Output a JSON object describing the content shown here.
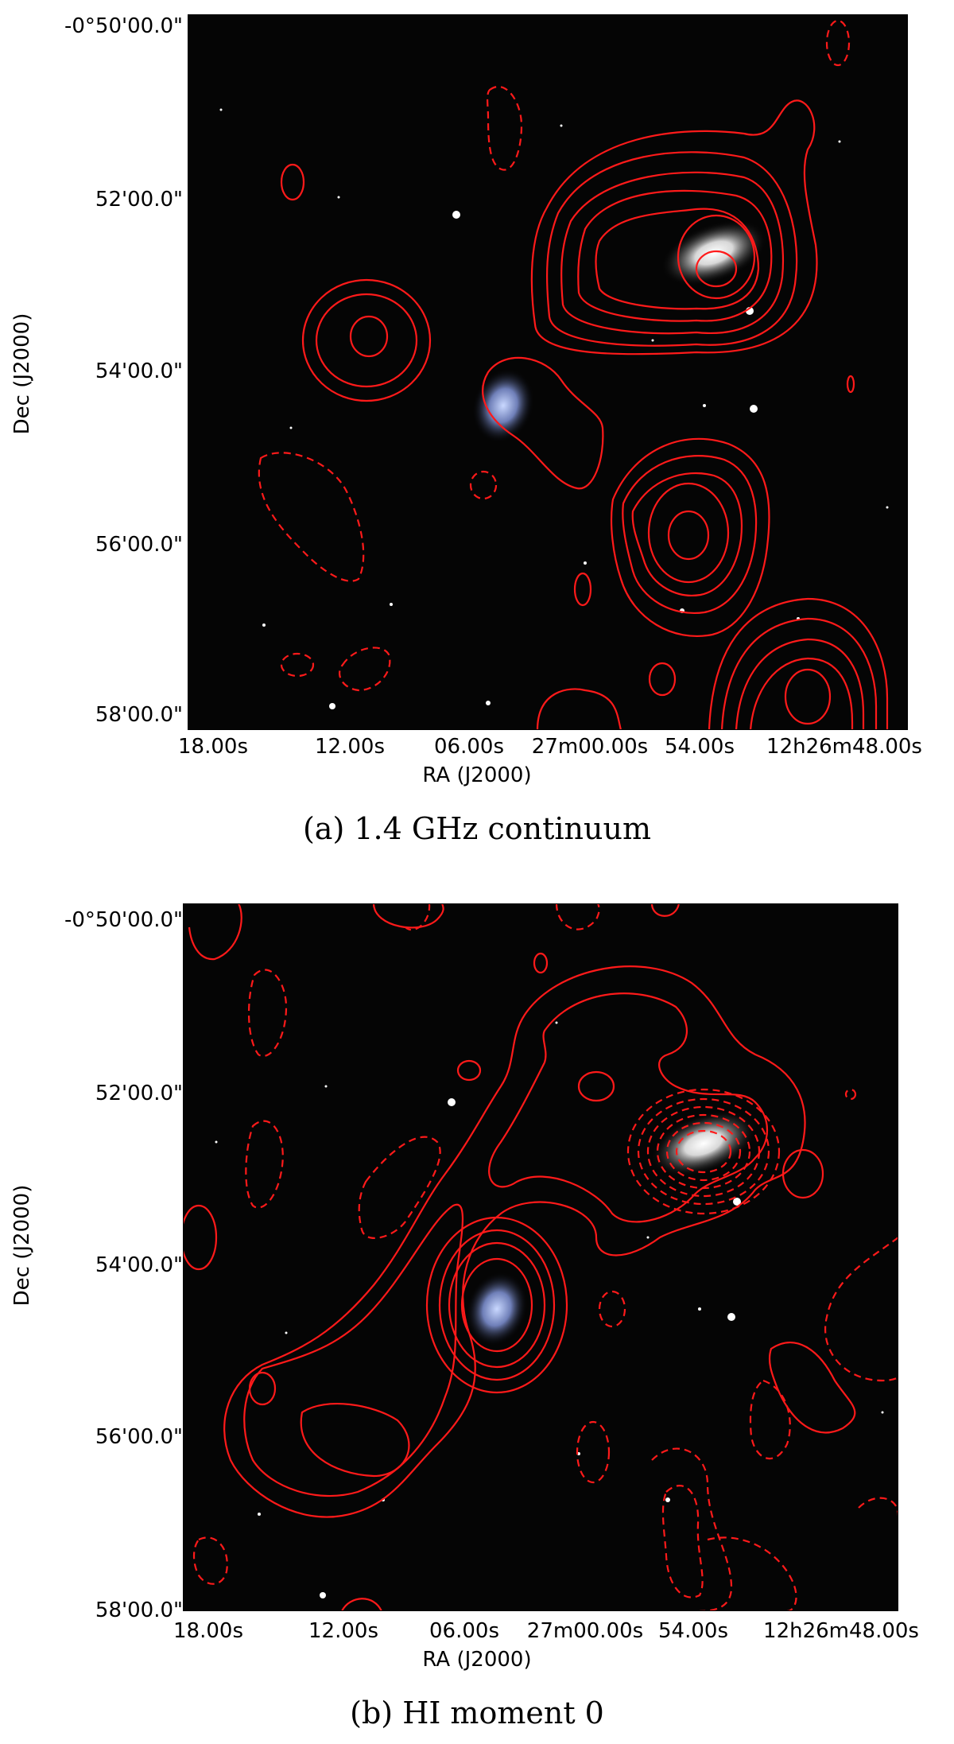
{
  "panels": [
    {
      "caption": "(a) 1.4 GHz continuum",
      "xlabel": "RA (J2000)",
      "ylabel": "Dec (J2000)",
      "yticks": [
        "-0°50'00.0\"",
        "52'00.0\"",
        "54'00.0\"",
        "56'00.0\"",
        "58'00.0\""
      ],
      "xticks": [
        "18.00s",
        "12.00s",
        "06.00s",
        "27m00.00s",
        "54.00s",
        "12h26m48.00s"
      ],
      "contour_color": "#ff1a1a"
    },
    {
      "caption": "(b) HI moment 0",
      "xlabel": "RA (J2000)",
      "ylabel": "Dec (J2000)",
      "yticks": [
        "-0°50'00.0\"",
        "52'00.0\"",
        "54'00.0\"",
        "56'00.0\"",
        "58'00.0\""
      ],
      "xticks": [
        "18.00s",
        "12.00s",
        "06.00s",
        "27m00.00s",
        "54.00s",
        "12h26m48.00s"
      ],
      "contour_color": "#ff1a1a"
    }
  ]
}
